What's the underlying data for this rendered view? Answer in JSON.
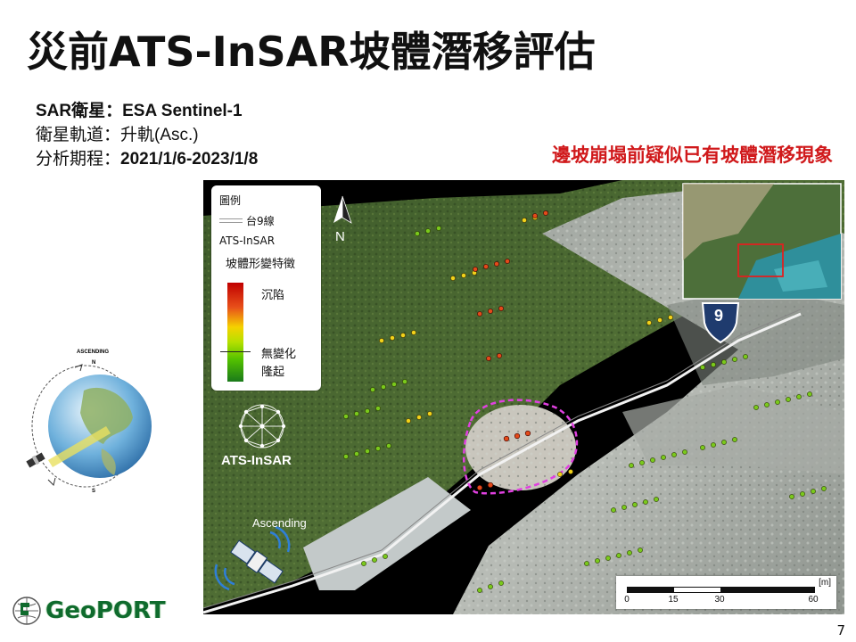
{
  "slide": {
    "title": "災前ATS-InSAR坡體潛移評估",
    "info": [
      {
        "label": "SAR衛星：",
        "value": "ESA Sentinel-1",
        "bold": true
      },
      {
        "label": "衛星軌道：",
        "value": "升軌(Asc.)",
        "bold": false
      },
      {
        "label": "分析期程：",
        "value": "2021/1/6-2023/1/8",
        "bold": true
      }
    ],
    "note": "邊坡崩塌前疑似已有坡體潛移現象",
    "page_number": "7"
  },
  "legend": {
    "title": "圖例",
    "road": "台9線",
    "ats": "ATS-InSAR",
    "feature": "坡體形變特徵",
    "subsidence": "沉陷",
    "no_change": "無變化",
    "uplift": "隆起"
  },
  "map": {
    "north_label": "N",
    "route_number": "9",
    "ascending_label": "Ascending",
    "ats_logo_text": "ATS-InSAR"
  },
  "scale": {
    "unit": "[m]",
    "ticks": [
      "0",
      "15",
      "30",
      "60"
    ]
  },
  "globe": {
    "top_label": "ASCENDING",
    "north": "N",
    "south": "S"
  },
  "logo": {
    "text": "GeoPORT"
  },
  "colors": {
    "note_red": "#d0191b",
    "logo_green": "#0f6b2d",
    "outline_magenta": "#e040e0"
  }
}
